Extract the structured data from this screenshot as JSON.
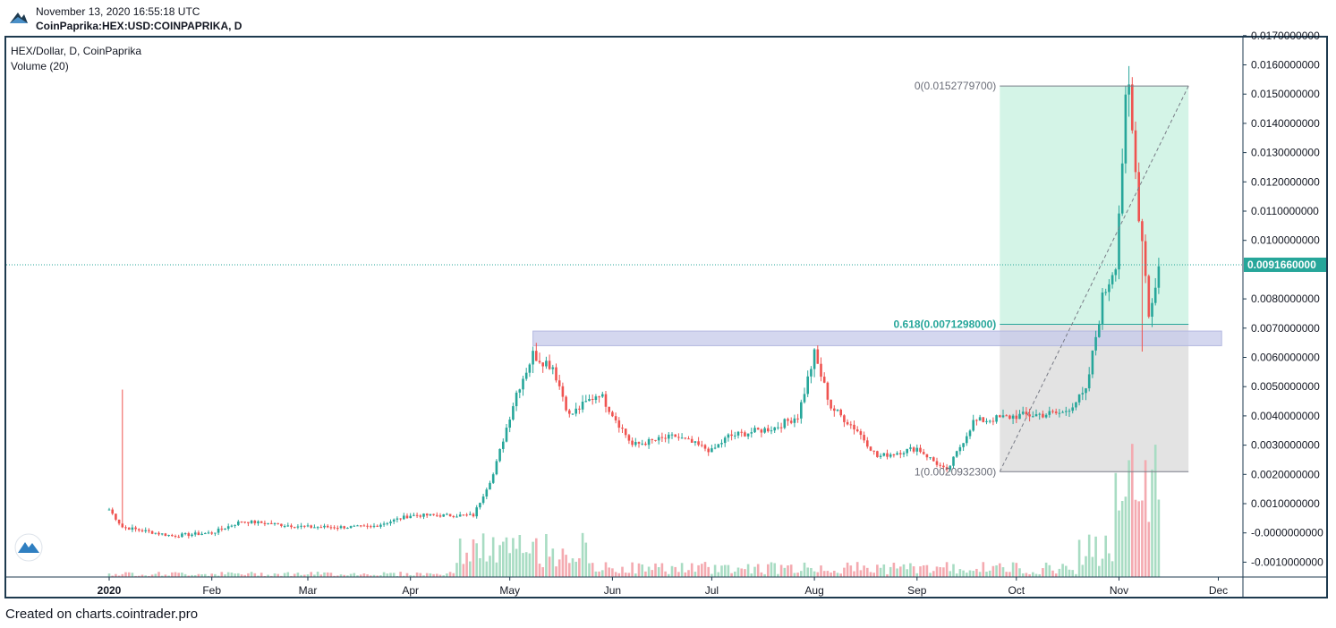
{
  "header": {
    "timestamp": "November 13, 2020 16:55:18 UTC",
    "symbol": "CoinPaprika:HEX:USD:COINPAPRIKA, D"
  },
  "legend": {
    "series_title": "HEX/Dollar, D, CoinPaprika",
    "volume_title": "Volume (20)"
  },
  "footer": {
    "text": "Created on charts.cointrader.pro"
  },
  "colors": {
    "up": "#26a69a",
    "down": "#ef5350",
    "vol_up": "#a8dcc3",
    "vol_down": "#f4aab0",
    "fib_upper": "#d4f4e7",
    "fib_lower": "#e3e3e3",
    "zone": "#c5cae9",
    "price_line": "#26a69a",
    "frame": "#1e3a4f"
  },
  "icons": {
    "logo": "tradingview-logo-icon",
    "watermark": "tradingview-watermark-icon"
  },
  "chart_data": {
    "type": "candlestick",
    "title": "HEX/Dollar, D, CoinPaprika",
    "x_ticks": [
      "2020",
      "Feb",
      "Mar",
      "Apr",
      "May",
      "Jun",
      "Jul",
      "Aug",
      "Sep",
      "Oct",
      "Nov",
      "Dec"
    ],
    "y_ticks": [
      "0.0170000000",
      "0.0160000000",
      "0.0150000000",
      "0.0140000000",
      "0.0130000000",
      "0.0120000000",
      "0.0110000000",
      "0.0100000000",
      "0.0080000000",
      "0.0070000000",
      "0.0060000000",
      "0.0050000000",
      "0.0040000000",
      "0.0030000000",
      "0.0020000000",
      "0.0010000000",
      "-0.0000000000",
      "-0.0010000000"
    ],
    "ylim": [
      -0.0013,
      0.0173
    ],
    "current_price": 0.009166,
    "current_price_label": "0.0091660000",
    "fib_levels": [
      {
        "label": "0(0.0152779700)",
        "value": 0.01527797
      },
      {
        "label": "0.618(0.0071298000)",
        "value": 0.0071298
      },
      {
        "label": "1(0.0020932300)",
        "value": 0.00209323
      }
    ],
    "resistance_zone": [
      0.0064,
      0.0069
    ],
    "close_path": [
      [
        "2020-01-01",
        0.0008
      ],
      [
        "2020-01-05",
        0.0002
      ],
      [
        "2020-01-20",
        -0.0001
      ],
      [
        "2020-02-01",
        0.0
      ],
      [
        "2020-02-10",
        0.0004
      ],
      [
        "2020-03-01",
        0.0002
      ],
      [
        "2020-03-20",
        0.0002
      ],
      [
        "2020-04-01",
        0.0006
      ],
      [
        "2020-04-20",
        0.0006
      ],
      [
        "2020-04-26",
        0.002
      ],
      [
        "2020-05-03",
        0.0048
      ],
      [
        "2020-05-08",
        0.0061
      ],
      [
        "2020-05-14",
        0.0057
      ],
      [
        "2020-05-19",
        0.004
      ],
      [
        "2020-05-28",
        0.0048
      ],
      [
        "2020-06-07",
        0.003
      ],
      [
        "2020-06-20",
        0.0033
      ],
      [
        "2020-07-01",
        0.0028
      ],
      [
        "2020-07-06",
        0.0033
      ],
      [
        "2020-07-20",
        0.0036
      ],
      [
        "2020-07-27",
        0.004
      ],
      [
        "2020-08-01",
        0.0061
      ],
      [
        "2020-08-06",
        0.0043
      ],
      [
        "2020-08-14",
        0.0035
      ],
      [
        "2020-08-20",
        0.0026
      ],
      [
        "2020-09-01",
        0.0029
      ],
      [
        "2020-09-10",
        0.0021
      ],
      [
        "2020-09-18",
        0.0038
      ],
      [
        "2020-10-01",
        0.004
      ],
      [
        "2020-10-15",
        0.0041
      ],
      [
        "2020-10-22",
        0.0048
      ],
      [
        "2020-10-27",
        0.008
      ],
      [
        "2020-10-31",
        0.0093
      ],
      [
        "2020-11-03",
        0.0145
      ],
      [
        "2020-11-04",
        0.015
      ],
      [
        "2020-11-06",
        0.0123
      ],
      [
        "2020-11-07",
        0.011
      ],
      [
        "2020-11-09",
        0.009
      ],
      [
        "2020-11-10",
        0.0074
      ],
      [
        "2020-11-13",
        0.0091
      ]
    ]
  }
}
